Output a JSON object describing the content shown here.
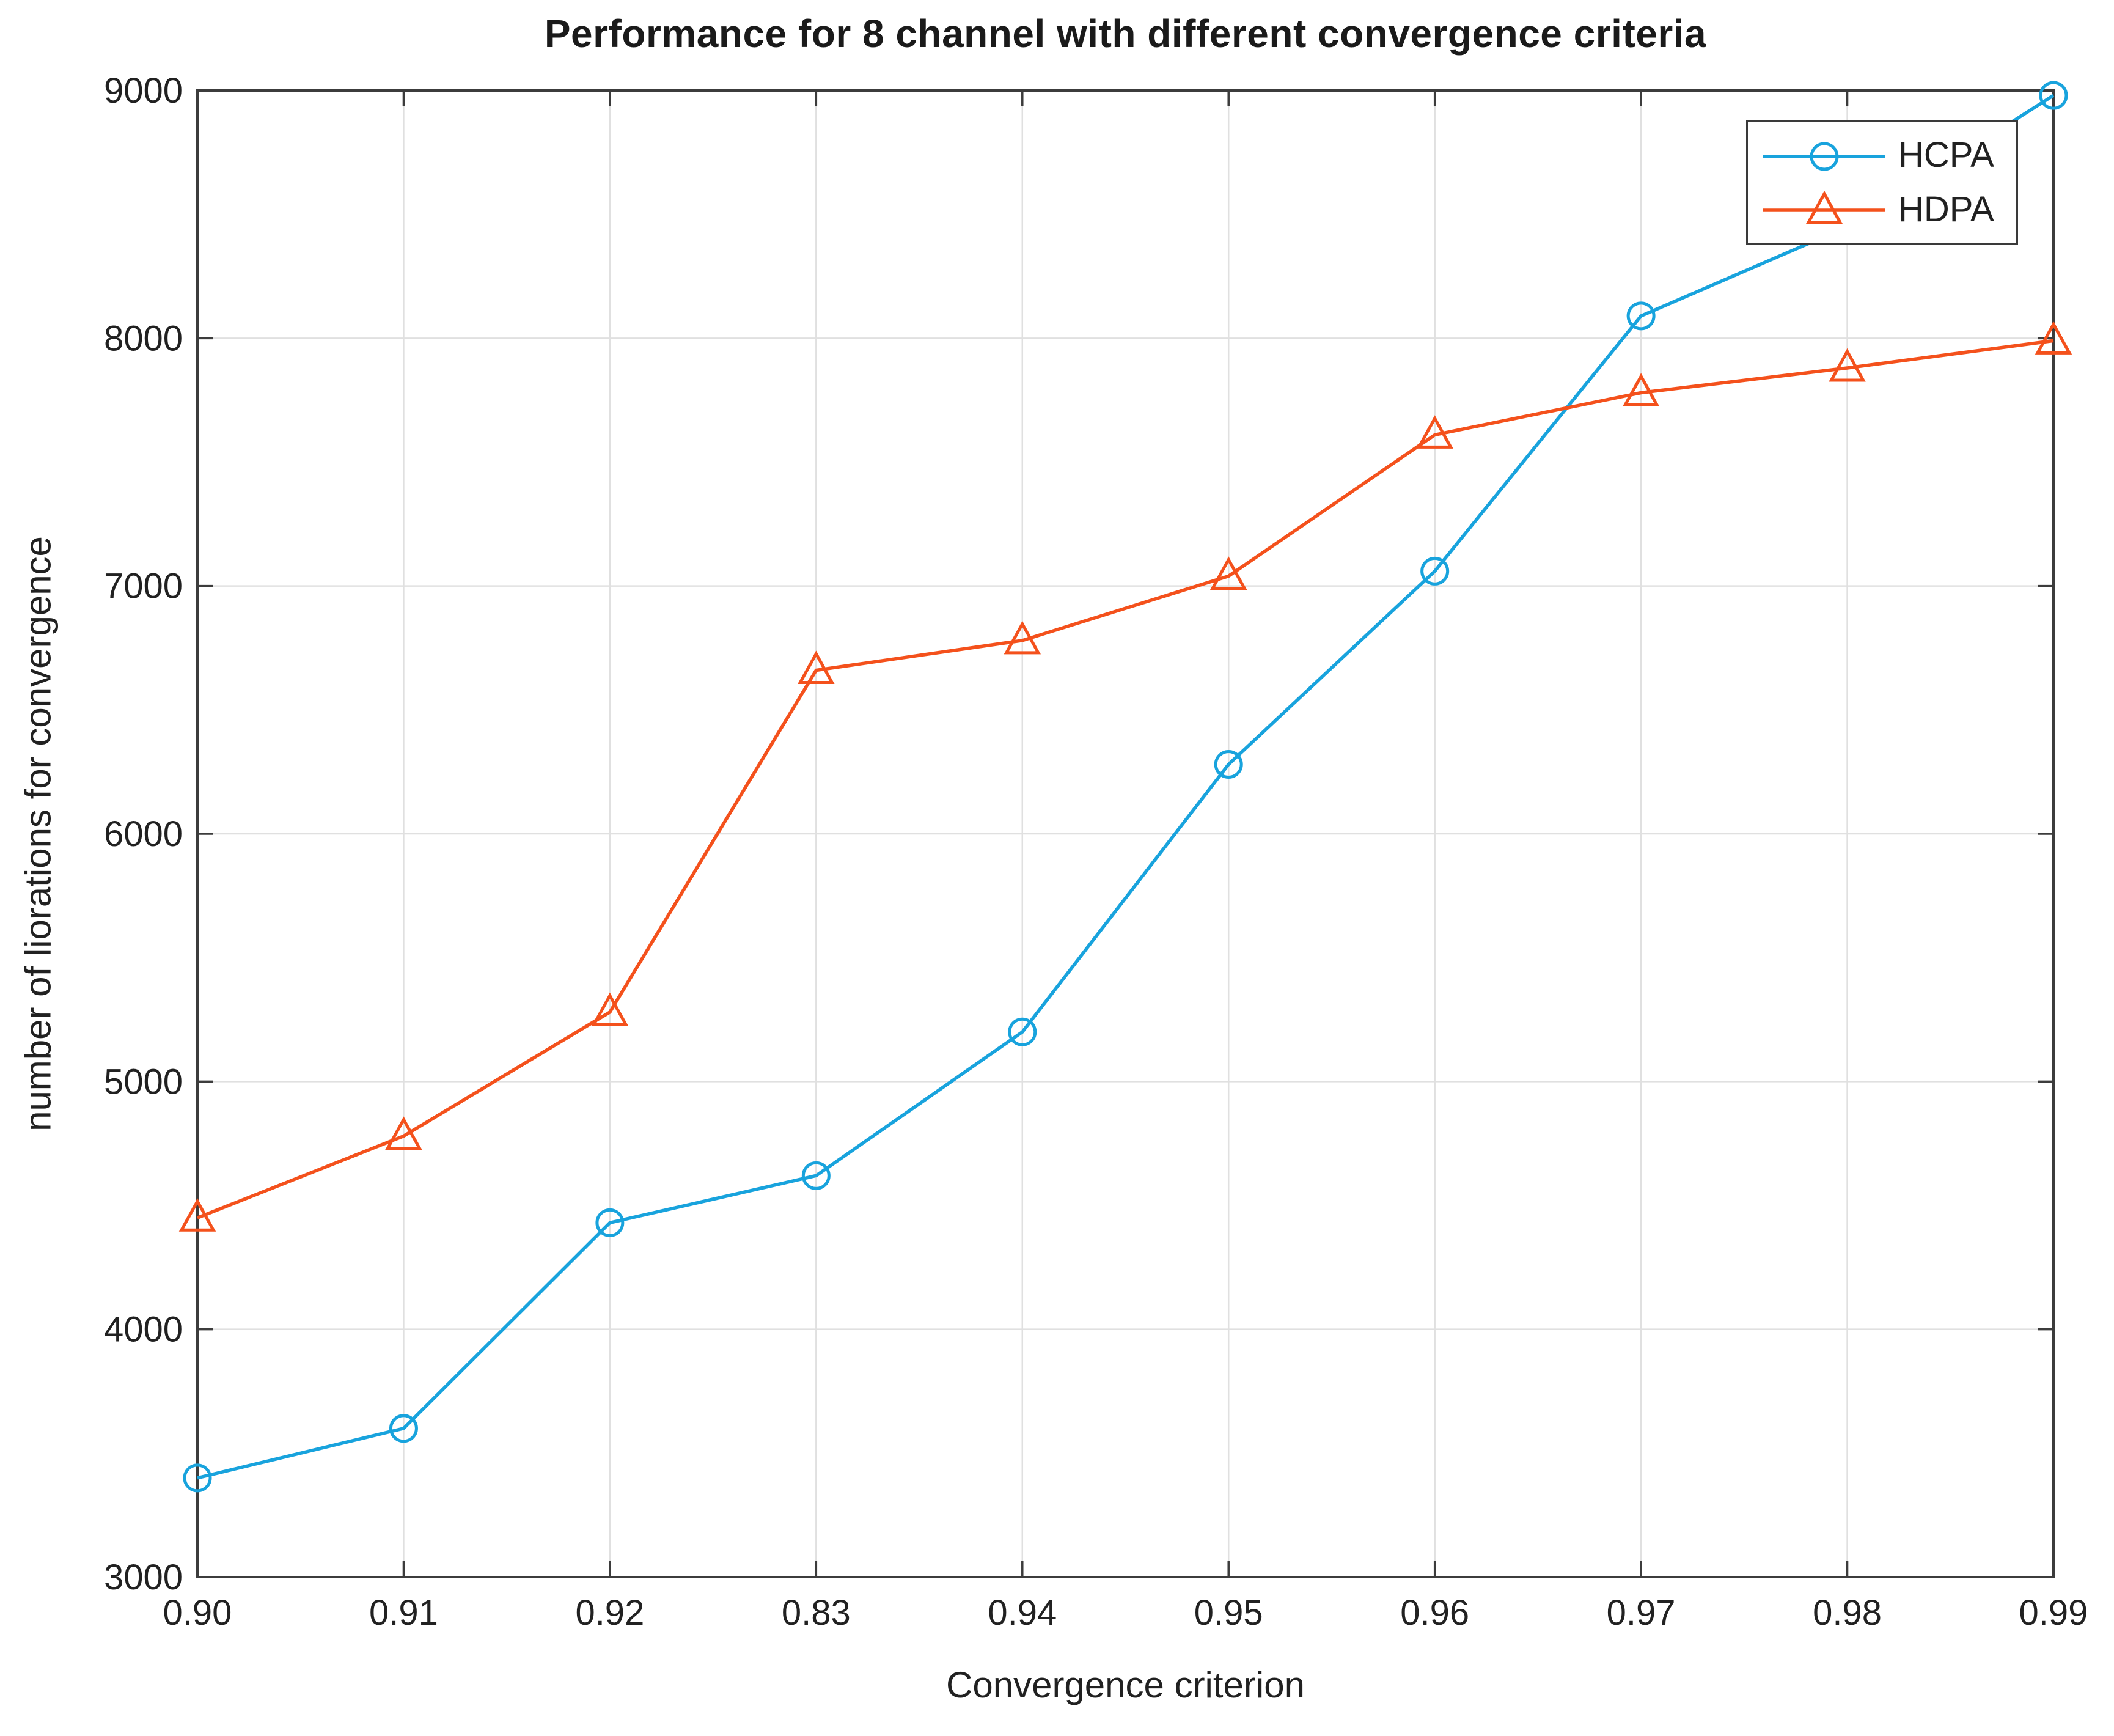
{
  "chart_data": {
    "type": "line",
    "title": "Performance for 8 channel with different convergence criteria",
    "xlabel": "Convergence criterion",
    "ylabel": "number of liorations for convergence",
    "categories": [
      "0.90",
      "0.91",
      "0.92",
      "0.83",
      "0.94",
      "0.95",
      "0.96",
      "0.97",
      "0.98",
      "0.99"
    ],
    "series": [
      {
        "name": "HCPA",
        "marker": "circle",
        "color": "#18a3dd",
        "values": [
          3400,
          3600,
          4430,
          4620,
          5200,
          6280,
          7060,
          8090,
          8450,
          8980
        ]
      },
      {
        "name": "HDPA",
        "marker": "triangle",
        "color": "#f4511c",
        "values": [
          4450,
          4780,
          5280,
          6660,
          6780,
          7040,
          7610,
          7780,
          7880,
          7990
        ]
      }
    ],
    "ylim": [
      3000,
      9000
    ],
    "yticks": [
      3000,
      4000,
      5000,
      6000,
      7000,
      8000,
      9000
    ],
    "grid": true,
    "legend_position": "top-right",
    "colors": {
      "grid": "#e0e0e0",
      "axis": "#3c3c3c",
      "text": "#212121",
      "background": "#ffffff"
    }
  }
}
